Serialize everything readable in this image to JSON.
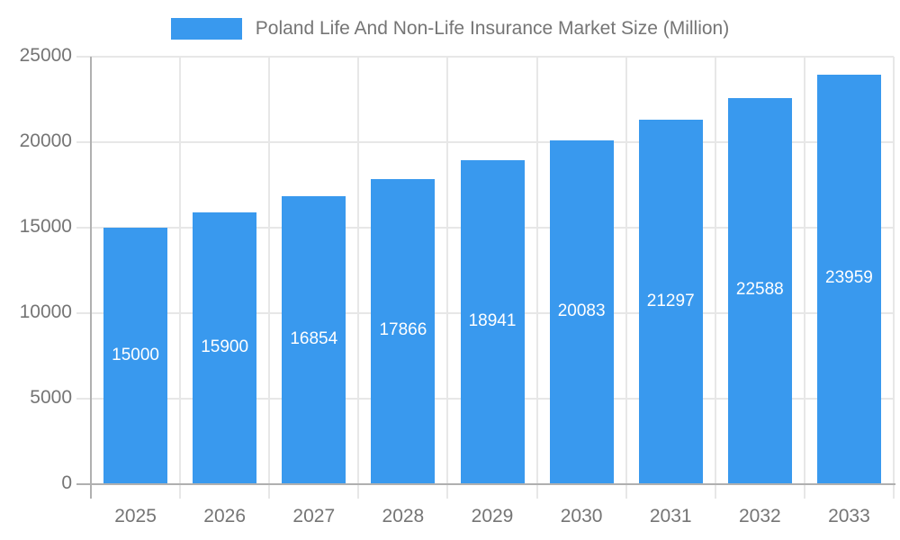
{
  "legend": {
    "label": "Poland Life And Non-Life Insurance Market Size (Million)"
  },
  "chart_data": {
    "type": "bar",
    "title": "Poland Life And Non-Life Insurance Market Size (Million)",
    "categories": [
      "2025",
      "2026",
      "2027",
      "2028",
      "2029",
      "2030",
      "2031",
      "2032",
      "2033"
    ],
    "series": [
      {
        "name": "Poland Life And Non-Life Insurance Market Size (Million)",
        "values": [
          15000,
          15900,
          16854,
          17866,
          18941,
          20083,
          21297,
          22588,
          23959
        ]
      }
    ],
    "xlabel": "",
    "ylabel": "",
    "ylim": [
      0,
      25000
    ],
    "yticks": [
      0,
      5000,
      10000,
      15000,
      20000,
      25000
    ],
    "grid": true,
    "legend_position": "top",
    "bar_labels_shown": true,
    "bar_label_position": "center-inside"
  },
  "colors": {
    "bar": "#3999ee",
    "axis_text": "#757575",
    "gridline": "#e7e7e7",
    "axis_line": "#b0b0b0",
    "value_label": "#ffffff",
    "background": "#ffffff"
  }
}
